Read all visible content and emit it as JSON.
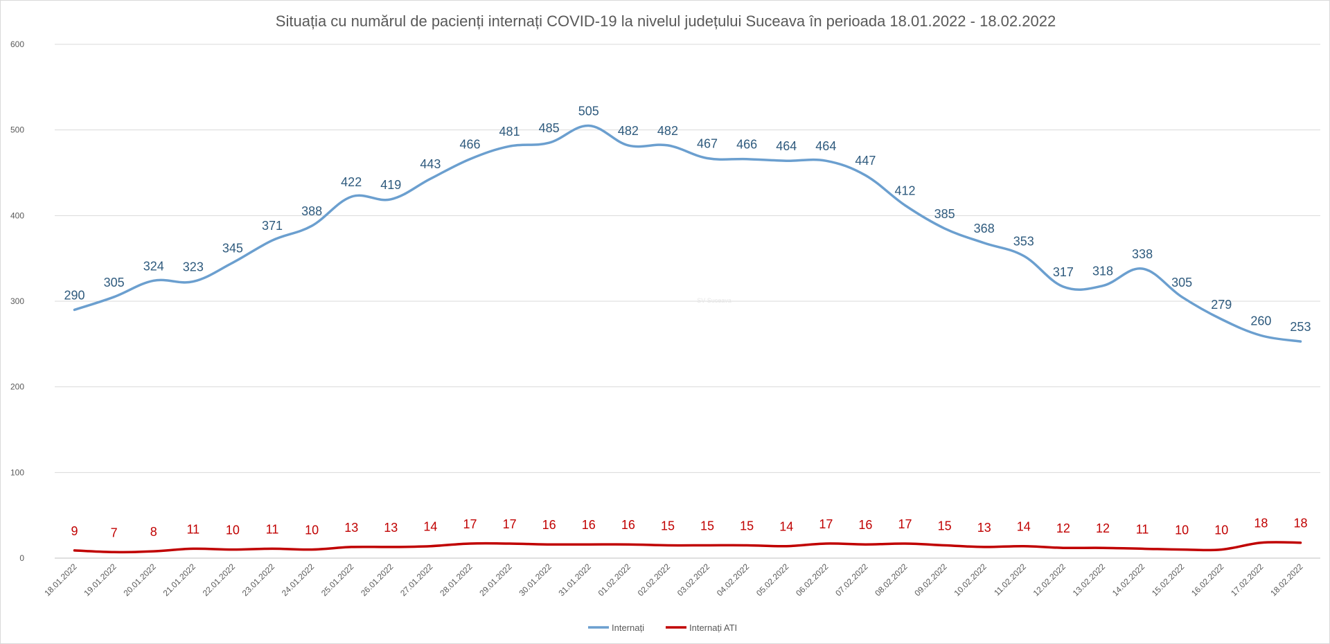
{
  "chart_data": {
    "type": "line",
    "title": "Situația cu numărul de pacienți internați COVID-19 la nivelul județului Suceava în perioada 18.01.2022 - 18.02.2022",
    "xlabel": "",
    "ylabel": "",
    "ylim": [
      0,
      600
    ],
    "yticks": [
      "0",
      "100",
      "200",
      "300",
      "400",
      "500",
      "600"
    ],
    "grid": true,
    "legend_position": "bottom",
    "categories": [
      "18.01.2022",
      "19.01.2022",
      "20.01.2022",
      "21.01.2022",
      "22.01.2022",
      "23.01.2022",
      "24.01.2022",
      "25.01.2022",
      "26.01.2022",
      "27.01.2022",
      "28.01.2022",
      "29.01.2022",
      "30.01.2022",
      "31.01.2022",
      "01.02.2022",
      "02.02.2022",
      "03.02.2022",
      "04.02.2022",
      "05.02.2022",
      "06.02.2022",
      "07.02.2022",
      "08.02.2022",
      "09.02.2022",
      "10.02.2022",
      "11.02.2022",
      "12.02.2022",
      "13.02.2022",
      "14.02.2022",
      "15.02.2022",
      "16.02.2022",
      "17.02.2022",
      "18.02.2022"
    ],
    "series": [
      {
        "name": "Internați",
        "color": "#6b9fcf",
        "label_color": "#2e5a7d",
        "values": [
          290,
          305,
          324,
          323,
          345,
          371,
          388,
          422,
          419,
          443,
          466,
          481,
          485,
          505,
          482,
          482,
          467,
          466,
          464,
          464,
          447,
          412,
          385,
          368,
          353,
          317,
          318,
          338,
          305,
          279,
          260,
          253
        ]
      },
      {
        "name": "Internați ATI",
        "color": "#c00000",
        "label_color": "#c00000",
        "values": [
          9,
          7,
          8,
          11,
          10,
          11,
          10,
          13,
          13,
          14,
          17,
          17,
          16,
          16,
          16,
          15,
          15,
          15,
          14,
          17,
          16,
          17,
          15,
          13,
          14,
          12,
          12,
          11,
          10,
          10,
          18,
          18
        ]
      }
    ],
    "watermark": "SV Suceava"
  }
}
